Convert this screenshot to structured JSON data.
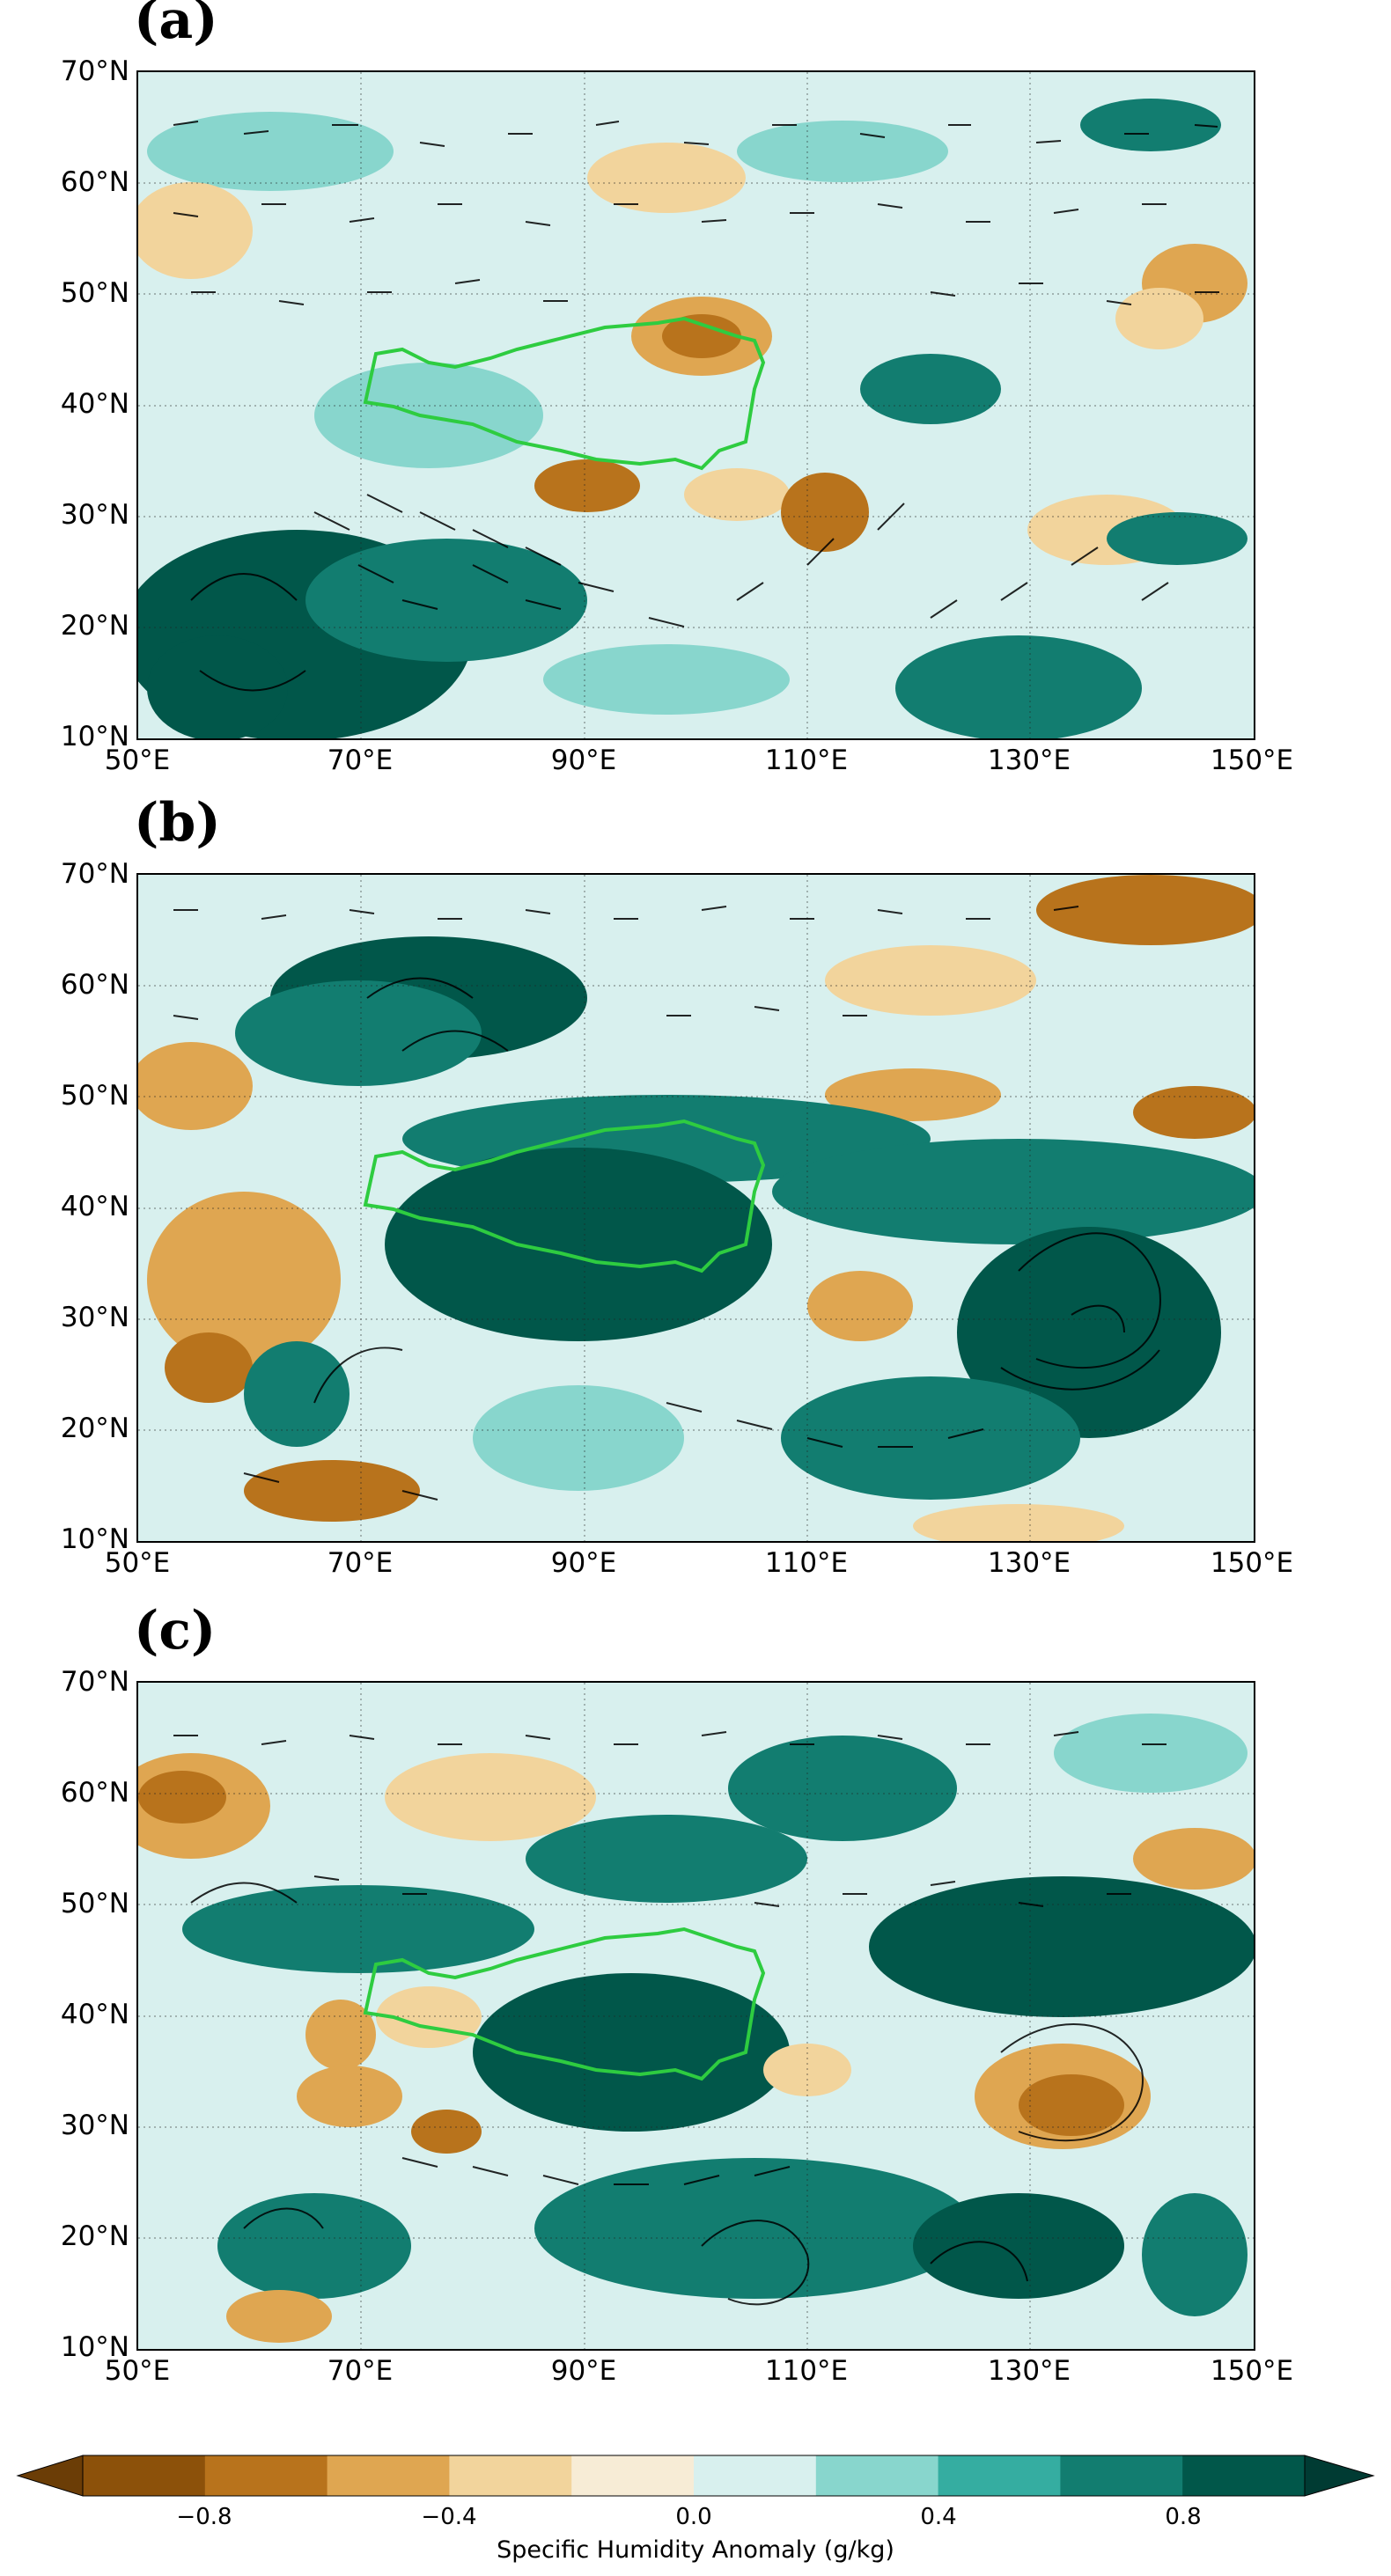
{
  "panels": [
    {
      "label": "(a)"
    },
    {
      "label": "(b)"
    },
    {
      "label": "(c)"
    }
  ],
  "lat_ticks": [
    "70°N",
    "60°N",
    "50°N",
    "40°N",
    "30°N",
    "20°N",
    "10°N"
  ],
  "lon_ticks": [
    "50°E",
    "70°E",
    "90°E",
    "110°E",
    "130°E",
    "150°E"
  ],
  "colorbar": {
    "title": "Specific Humidity Anomaly (g/kg)",
    "tick_labels": [
      "−0.8",
      "−0.4",
      "0.0",
      "0.4",
      "0.8"
    ],
    "levels": [
      -1.0,
      -0.8,
      -0.6,
      -0.4,
      -0.2,
      0.0,
      0.2,
      0.4,
      0.6,
      0.8,
      1.0
    ],
    "colors": [
      "#8c510a",
      "#b8731c",
      "#dfa651",
      "#f2d49c",
      "#f7ecd6",
      "#d8f0ee",
      "#88d6cd",
      "#35ada1",
      "#127d70",
      "#01574a"
    ],
    "extend": "both"
  },
  "legend_colors": {
    "tp_boundary": "#2ecc40",
    "vectors": "#000000",
    "stipple": "#d8734a"
  }
}
